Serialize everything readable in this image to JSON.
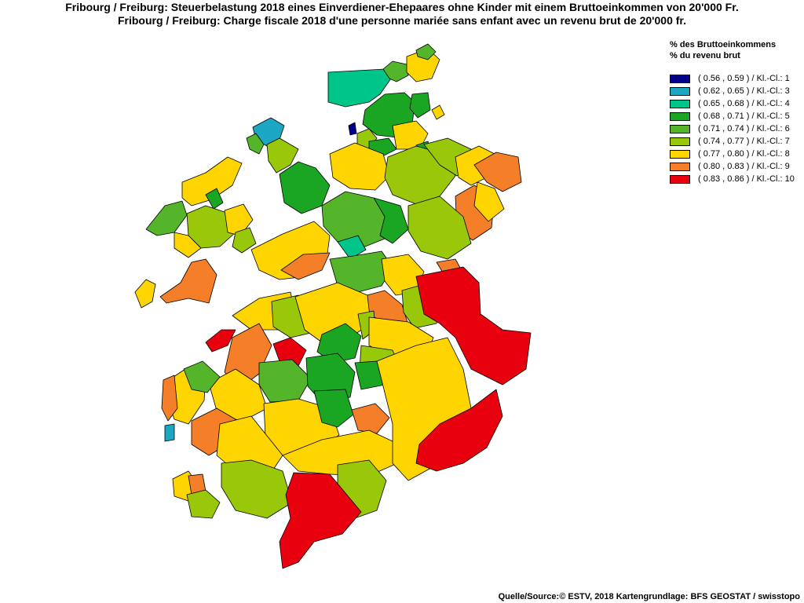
{
  "title_de": "Fribourg / Freiburg: Steuerbelastung 2018 eines Einverdiener-Ehepaares ohne Kinder mit einem Bruttoeinkommen von 20'000 Fr.",
  "title_fr": "Fribourg / Freiburg: Charge fiscale 2018 d'une personne mariée sans enfant avec un revenu brut de 20'000 fr.",
  "legend": {
    "heading_de": "% des Bruttoeinkommens",
    "heading_fr": "% du revenu brut",
    "classes": [
      {
        "label": "( 0.56 , 0.59 ) / Kl.-Cl.: 1",
        "color": "#00008b"
      },
      {
        "label": "( 0.62 , 0.65 ) / Kl.-Cl.: 3",
        "color": "#1ba6c2"
      },
      {
        "label": "( 0.65 , 0.68 ) / Kl.-Cl.: 4",
        "color": "#00c58a"
      },
      {
        "label": "( 0.68 , 0.71 ) / Kl.-Cl.: 5",
        "color": "#1aa523"
      },
      {
        "label": "( 0.71 , 0.74 ) / Kl.-Cl.: 6",
        "color": "#55b52a"
      },
      {
        "label": "( 0.74 , 0.77 ) / Kl.-Cl.: 7",
        "color": "#99c80a"
      },
      {
        "label": "( 0.77 , 0.80 ) / Kl.-Cl.: 8",
        "color": "#ffd500"
      },
      {
        "label": "( 0.80 , 0.83 ) / Kl.-Cl.: 9",
        "color": "#f47f28"
      },
      {
        "label": "( 0.83 , 0.86 ) / Kl.-Cl.: 10",
        "color": "#e8000f"
      }
    ]
  },
  "source": "Quelle/Source:© ESTV, 2018 Kartengrundlage: BFS GEOSTAT / swisstopo"
}
